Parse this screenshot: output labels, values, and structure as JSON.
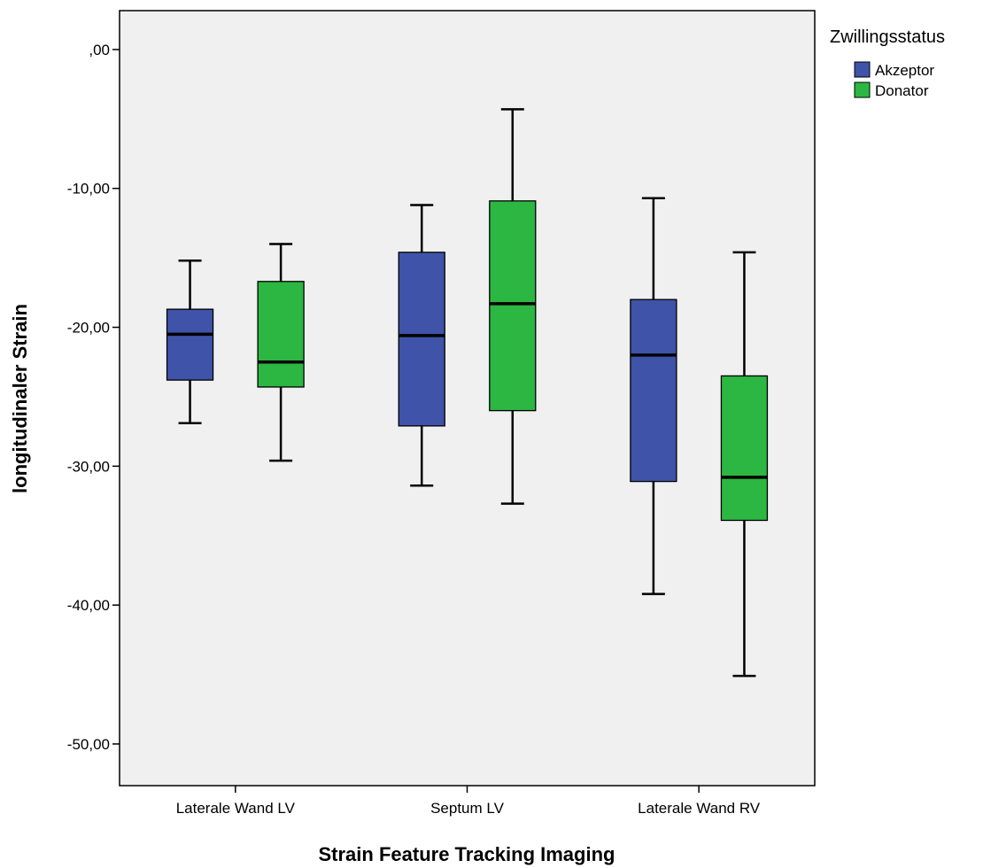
{
  "chart_data": {
    "type": "boxplot",
    "title": "",
    "xlabel": "Strain Feature Tracking Imaging",
    "ylabel": "longitudinaler Strain",
    "ylim": [
      -53,
      2.8
    ],
    "yticks": [
      0,
      -10,
      -20,
      -30,
      -40,
      -50
    ],
    "ytick_labels": [
      ",00",
      "-10,00",
      "-20,00",
      "-30,00",
      "-40,00",
      "-50,00"
    ],
    "categories": [
      "Laterale Wand LV",
      "Septum LV",
      "Laterale Wand RV"
    ],
    "grid": false,
    "legend": {
      "title": "Zwillingsstatus",
      "position": "top-right",
      "entries": [
        "Akzeptor",
        "Donator"
      ]
    },
    "series": [
      {
        "name": "Akzeptor",
        "color": "#3f53a8",
        "boxes": [
          {
            "whisker_high": -15.2,
            "q3": -18.7,
            "median": -20.5,
            "q1": -23.8,
            "whisker_low": -26.9
          },
          {
            "whisker_high": -11.2,
            "q3": -14.6,
            "median": -20.6,
            "q1": -27.1,
            "whisker_low": -31.4
          },
          {
            "whisker_high": -10.7,
            "q3": -18.0,
            "median": -22.0,
            "q1": -31.1,
            "whisker_low": -39.2
          }
        ]
      },
      {
        "name": "Donator",
        "color": "#2bb742",
        "boxes": [
          {
            "whisker_high": -14.0,
            "q3": -16.7,
            "median": -22.5,
            "q1": -24.3,
            "whisker_low": -29.6
          },
          {
            "whisker_high": -4.3,
            "q3": -10.9,
            "median": -18.3,
            "q1": -26.0,
            "whisker_low": -32.7
          },
          {
            "whisker_high": -14.6,
            "q3": -23.5,
            "median": -30.8,
            "q1": -33.9,
            "whisker_low": -45.1
          }
        ]
      }
    ]
  }
}
